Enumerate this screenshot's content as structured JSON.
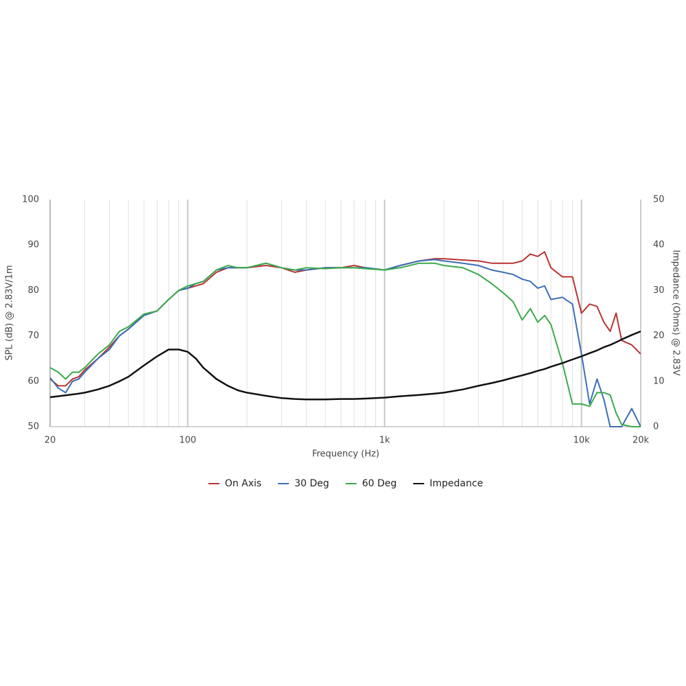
{
  "chart_data": {
    "type": "line",
    "xlabel": "Frequency (Hz)",
    "ylabel": "SPL (dB) @ 2.83V/1m",
    "y2label": "Impedance (Ohms) @ 2.83V",
    "xscale": "log",
    "xlim": [
      20,
      20000
    ],
    "xticks": [
      20,
      100,
      {
        "value": 1000,
        "label": "1k"
      },
      {
        "value": 10000,
        "label": "10k"
      },
      {
        "value": 20000,
        "label": "20k"
      }
    ],
    "xminor": [
      30,
      40,
      50,
      60,
      70,
      80,
      90,
      200,
      300,
      400,
      500,
      600,
      700,
      800,
      900,
      2000,
      3000,
      4000,
      5000,
      6000,
      7000,
      8000,
      9000
    ],
    "ylim": [
      50,
      100
    ],
    "yticks": [
      50,
      60,
      70,
      80,
      90,
      100
    ],
    "y2lim": [
      0,
      50
    ],
    "y2ticks": [
      0,
      10,
      20,
      30,
      40,
      50
    ],
    "grid": true,
    "legend": "bottom",
    "x": [
      20,
      22,
      24,
      26,
      28,
      30,
      35,
      40,
      45,
      50,
      60,
      70,
      80,
      90,
      100,
      110,
      120,
      140,
      160,
      180,
      200,
      250,
      300,
      350,
      400,
      500,
      600,
      700,
      800,
      1000,
      1200,
      1500,
      1800,
      2000,
      2500,
      3000,
      3500,
      4000,
      4500,
      5000,
      5500,
      6000,
      6500,
      7000,
      8000,
      9000,
      10000,
      11000,
      12000,
      13000,
      14000,
      15000,
      16000,
      18000,
      20000
    ],
    "series": [
      {
        "name": "On Axis",
        "color": "#b83232",
        "values": [
          60.5,
          59,
          59,
          60.5,
          61,
          62.5,
          65,
          67.5,
          70,
          71.5,
          74.5,
          75.5,
          78,
          80,
          80.5,
          81,
          81.5,
          84,
          85,
          85,
          85,
          85.5,
          85,
          84,
          84.5,
          85,
          85,
          85.5,
          85,
          84.5,
          85.5,
          86.5,
          87,
          87,
          86.7,
          86.5,
          86,
          86,
          86,
          86.5,
          88,
          87.5,
          88.5,
          85,
          83,
          83,
          75,
          77,
          76.5,
          73,
          71,
          75,
          69,
          68,
          66
        ]
      },
      {
        "name": "30 Deg",
        "color": "#3a6eb5",
        "values": [
          60.8,
          58.5,
          57.5,
          60,
          60.5,
          62,
          65,
          67,
          70,
          71.5,
          74.5,
          75.5,
          78,
          80,
          80.5,
          81.5,
          82,
          84.5,
          85,
          85,
          85,
          86,
          85,
          84.5,
          84.5,
          85,
          85,
          85,
          85,
          84.5,
          85.5,
          86.5,
          86.8,
          86.5,
          86,
          85.5,
          84.5,
          84,
          83.5,
          82.5,
          82,
          80.5,
          81,
          78,
          78.5,
          77,
          66,
          55,
          60.5,
          56,
          50,
          50,
          50,
          54,
          50
        ]
      },
      {
        "name": "60 Deg",
        "color": "#3aaa4a",
        "values": [
          63,
          62,
          60.5,
          62,
          62,
          63,
          66,
          68,
          71,
          72,
          74.8,
          75.5,
          78,
          80,
          81,
          81.5,
          82,
          84.5,
          85.5,
          85,
          85,
          86,
          85,
          84.5,
          85,
          84.8,
          85,
          85,
          84.8,
          84.5,
          85,
          86,
          86,
          85.5,
          85,
          83.5,
          81.5,
          79.5,
          77.5,
          73.5,
          76,
          73,
          74.5,
          72.5,
          64,
          55,
          55,
          54.5,
          57.5,
          57.5,
          57,
          53,
          50.5,
          50,
          50
        ]
      },
      {
        "name": "Impedance",
        "color": "#111111",
        "axis": "y2",
        "values": [
          6.5,
          6.7,
          6.9,
          7.1,
          7.3,
          7.5,
          8.2,
          9,
          10,
          11,
          13.5,
          15.5,
          17,
          17,
          16.5,
          15,
          13,
          10.5,
          9,
          8,
          7.5,
          6.8,
          6.3,
          6.1,
          6,
          6,
          6.1,
          6.1,
          6.2,
          6.4,
          6.7,
          7,
          7.3,
          7.5,
          8.2,
          9,
          9.6,
          10.2,
          10.8,
          11.3,
          11.8,
          12.3,
          12.7,
          13.2,
          14,
          14.8,
          15.5,
          16.2,
          16.8,
          17.5,
          18,
          18.6,
          19.2,
          20.2,
          21
        ]
      }
    ]
  }
}
